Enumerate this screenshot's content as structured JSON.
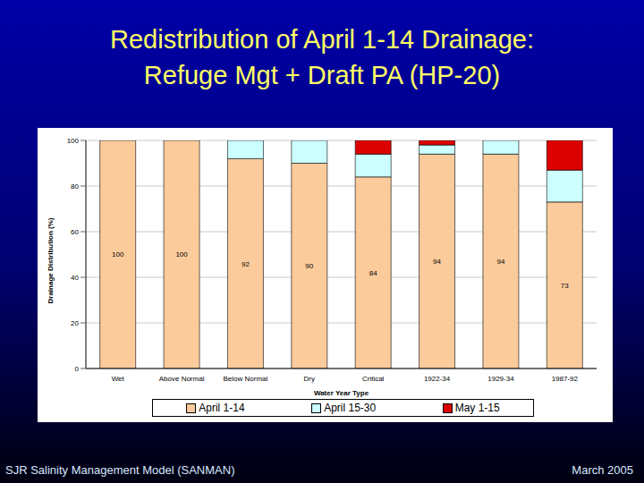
{
  "slide": {
    "title_lines": [
      "Redistribution of April 1-14 Drainage:",
      "Refuge Mgt + Draft PA (HP-20)"
    ],
    "footer_left": "SJR Salinity Management Model (SANMAN)",
    "footer_right": "March 2005"
  },
  "chart_data": {
    "type": "bar",
    "stacked": true,
    "categories": [
      "Wet",
      "Above Normal",
      "Below Normal",
      "Dry",
      "Critical",
      "1922-34",
      "1929-34",
      "1987-92"
    ],
    "series": [
      {
        "name": "April 1-14",
        "color": "#fccb9c",
        "values": [
          100,
          100,
          92,
          90,
          84,
          94,
          94,
          73
        ],
        "data_labels": true
      },
      {
        "name": "April 15-30",
        "color": "#ccffff",
        "values": [
          0,
          0,
          8,
          10,
          10,
          4,
          6,
          14
        ]
      },
      {
        "name": "May 1-15",
        "color": "#dd0000",
        "values": [
          0,
          0,
          0,
          0,
          6,
          2,
          0,
          13
        ]
      }
    ],
    "x_label": "Water Year Type",
    "y_label": "Drainage Distribution (%)",
    "ylim": [
      0,
      100
    ],
    "yticks": [
      0,
      20,
      40,
      60,
      80,
      100
    ],
    "grid": true,
    "legend": "bottom"
  }
}
